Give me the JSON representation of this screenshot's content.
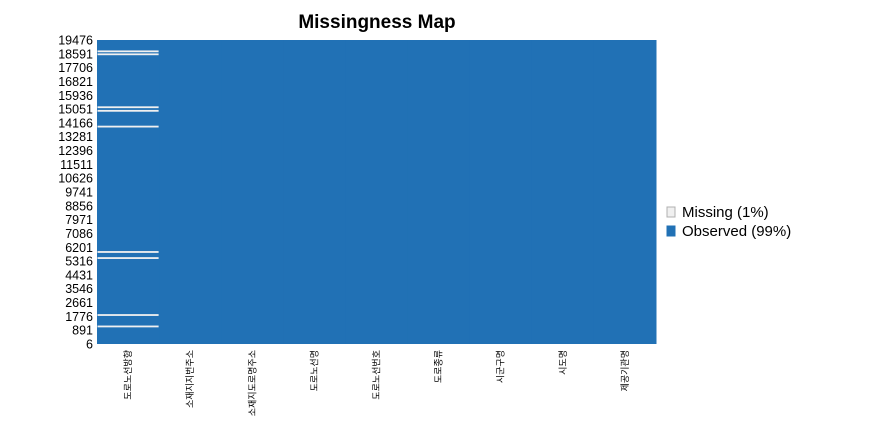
{
  "chart_data": {
    "type": "heatmap",
    "title": "Missingness Map",
    "xlabel": "",
    "ylabel": "",
    "columns": [
      "도로노선방향",
      "소재지지번주소",
      "소재지도로명주소",
      "도로노선명",
      "도로노선번호",
      "도로종류",
      "시군구명",
      "시도명",
      "제공기관명"
    ],
    "y_ticks": [
      "19476",
      "18591",
      "17706",
      "16821",
      "15936",
      "15051",
      "14166",
      "13281",
      "12396",
      "11511",
      "10626",
      "9741",
      "8856",
      "7971",
      "7086",
      "6201",
      "5316",
      "4431",
      "3546",
      "2661",
      "1776",
      "891",
      "6"
    ],
    "ylim": [
      6,
      19476
    ],
    "missing_rows": {
      "도로노선방향": [
        1130,
        1862,
        5510,
        5900,
        13930,
        14940,
        15170,
        18560,
        18750
      ]
    },
    "legend": [
      {
        "label": "Missing (1%)",
        "color": "#f0f0f0"
      },
      {
        "label": "Observed (99%)",
        "color": "#2171b5"
      }
    ],
    "legend_position": "right",
    "grid": false
  }
}
